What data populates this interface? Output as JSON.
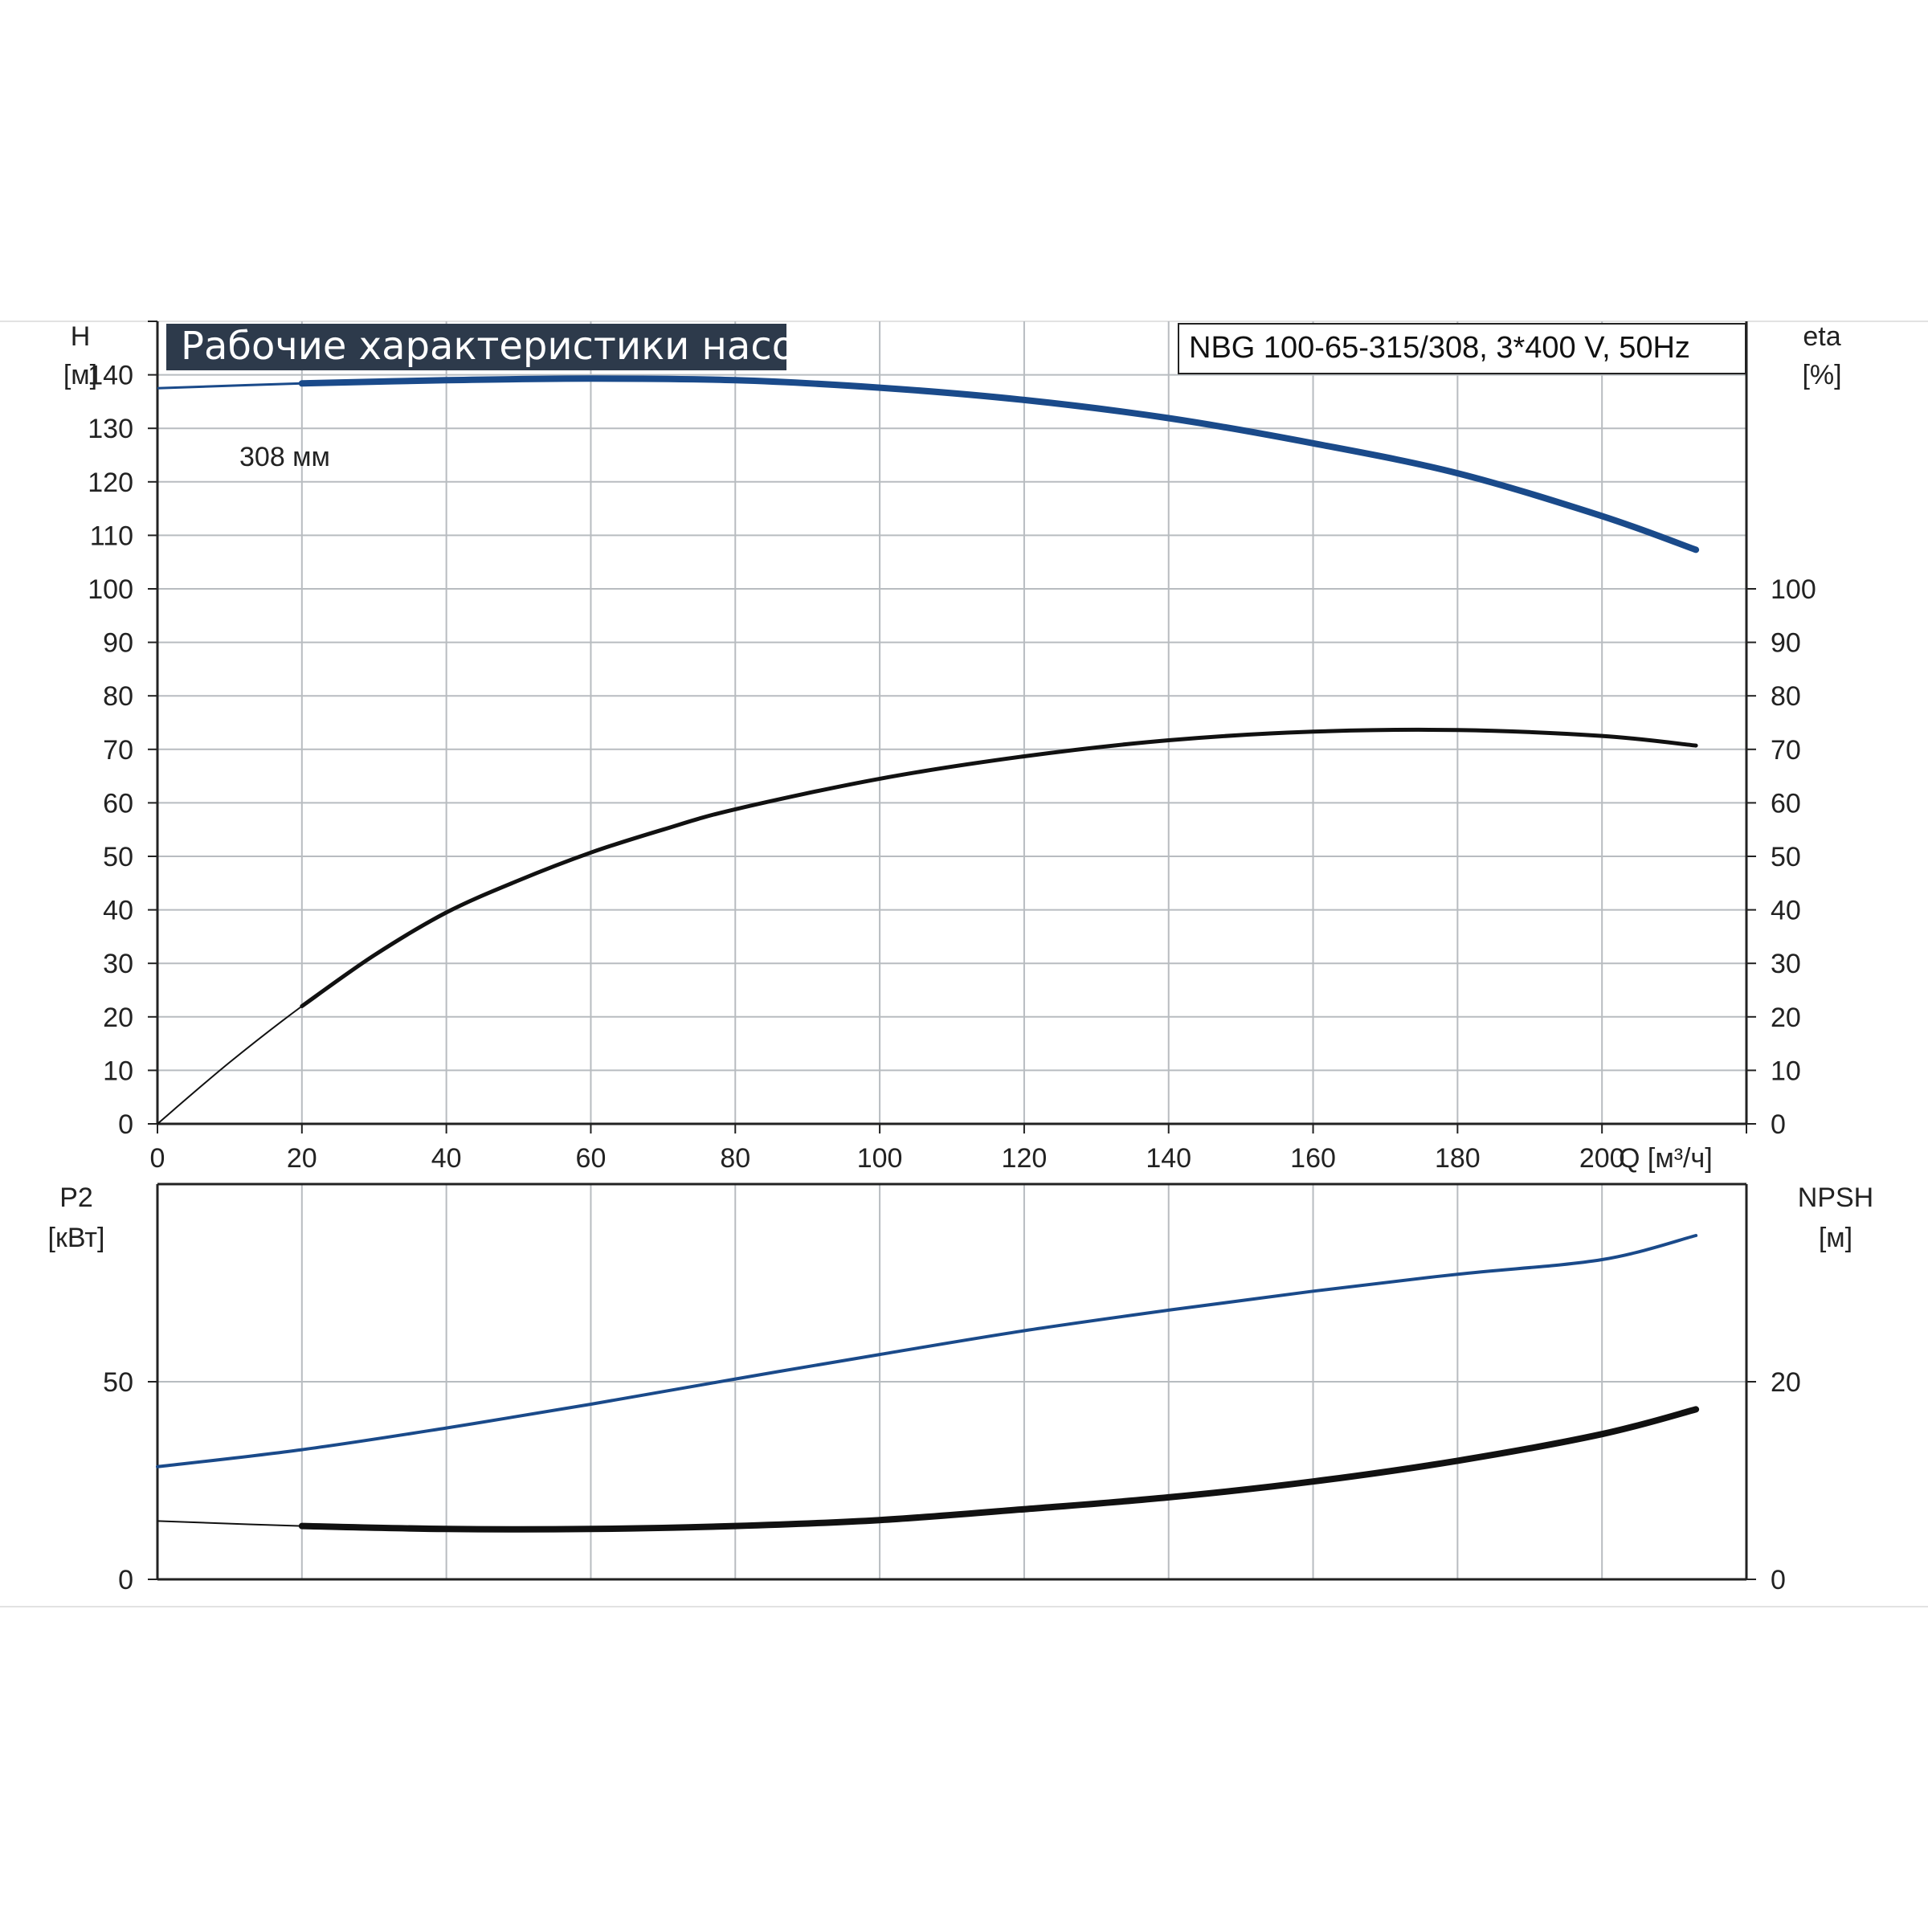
{
  "title": "Рабочие характеристики насоса",
  "model": "NBG 100-65-315/308, 3*400 V, 50Hz",
  "colors": {
    "title_bg": "#2d3a4b",
    "grid": "#b8bcc0",
    "blue": "#1a4a8a",
    "black": "#111111"
  },
  "chart_data": [
    {
      "type": "line",
      "panel": "upper",
      "xlabel": "Q [м³/ч]",
      "xlim": [
        0,
        220
      ],
      "x_ticks": [
        "0",
        "20",
        "40",
        "60",
        "80",
        "100",
        "120",
        "140",
        "160",
        "180",
        "200"
      ],
      "left_axis": {
        "label_line1": "H",
        "label_line2": "[м]",
        "ylim": [
          0,
          150
        ],
        "ticks": [
          "0",
          "10",
          "20",
          "30",
          "40",
          "50",
          "60",
          "70",
          "80",
          "90",
          "100",
          "110",
          "120",
          "130",
          "140"
        ]
      },
      "right_axis": {
        "label_line1": "eta",
        "label_line2": "[%]",
        "ylim": [
          0,
          150
        ],
        "ticks": [
          "0",
          "10",
          "20",
          "30",
          "40",
          "50",
          "60",
          "70",
          "80",
          "90",
          "100"
        ]
      },
      "grid": true,
      "series": [
        {
          "name": "308 мм",
          "axis": "left",
          "color": "#1a4a8a",
          "x": [
            0,
            20,
            40,
            60,
            80,
            100,
            120,
            140,
            160,
            180,
            200,
            213
          ],
          "y": [
            137.5,
            138.4,
            139.0,
            139.3,
            139.0,
            137.6,
            135.3,
            131.9,
            127.2,
            121.6,
            113.6,
            107.3
          ]
        },
        {
          "axis": "right",
          "color": "#111111",
          "x": [
            0,
            10,
            20,
            30,
            40,
            50,
            60,
            70,
            80,
            100,
            120,
            140,
            160,
            180,
            200,
            213
          ],
          "y": [
            0,
            11.5,
            22,
            31.5,
            39.5,
            45.5,
            50.7,
            55.0,
            58.8,
            64.5,
            68.7,
            71.7,
            73.3,
            73.6,
            72.5,
            70.7
          ]
        }
      ]
    },
    {
      "type": "line",
      "panel": "lower",
      "xlim": [
        0,
        220
      ],
      "left_axis": {
        "label_line1": "P2",
        "label_line2": "[кВт]",
        "ylim": [
          0,
          100
        ],
        "ticks": [
          "0",
          "50"
        ]
      },
      "right_axis": {
        "label_line1": "NPSH",
        "label_line2": "[м]",
        "ylim": [
          0,
          40
        ],
        "ticks": [
          "0",
          "20"
        ]
      },
      "grid": true,
      "series": [
        {
          "axis": "left",
          "color": "#1a4a8a",
          "x": [
            0,
            20,
            40,
            60,
            80,
            100,
            120,
            140,
            160,
            180,
            200,
            213
          ],
          "y": [
            28.5,
            32.8,
            38.3,
            44.3,
            50.7,
            56.9,
            62.9,
            68.1,
            72.9,
            77.2,
            80.9,
            87.0
          ]
        },
        {
          "axis": "right",
          "color": "#111111",
          "x": [
            0,
            20,
            40,
            60,
            80,
            100,
            120,
            140,
            160,
            180,
            200,
            213
          ],
          "y": [
            5.9,
            5.4,
            5.1,
            5.1,
            5.4,
            6.0,
            7.1,
            8.3,
            9.9,
            12.0,
            14.7,
            17.2
          ]
        }
      ]
    }
  ]
}
